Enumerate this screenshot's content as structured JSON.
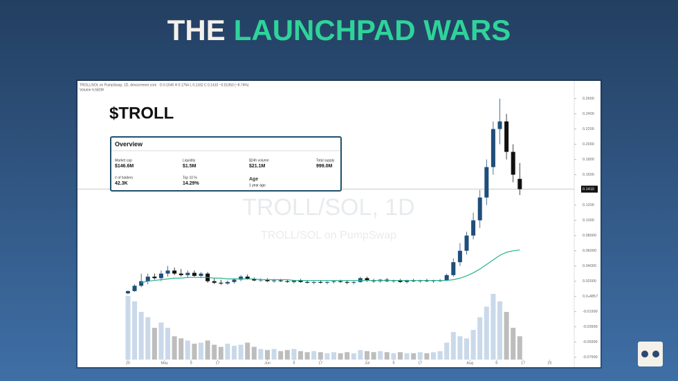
{
  "header": {
    "title": [
      "THE",
      "LAUNCHPAD WARS"
    ]
  },
  "chart_data": {
    "type": "candlestick",
    "info": "TROLL/SOL on PumpSwap, 1D, dexscreener.com · O 0.1545 H 0.1754 L 0.1332 C 0.1410 −0.01350 (−8.74%)",
    "volume_label": "Volume 6.582M",
    "ticker": "$TROLL",
    "watermark": "TROLL/SOL, 1D",
    "watermark_sub": "TROLL/SOL on PumpSwap",
    "x": [
      0,
      2,
      4,
      6,
      8,
      10,
      12,
      14,
      16,
      18,
      20,
      22,
      24,
      26,
      28,
      30,
      32,
      34,
      36,
      38,
      40,
      42,
      44,
      46,
      48,
      50,
      52,
      54,
      56,
      58,
      60,
      62,
      64,
      66,
      68,
      70,
      72,
      74,
      76,
      78,
      80,
      82,
      84,
      86,
      88,
      90,
      92,
      94,
      96,
      98,
      100,
      102,
      104,
      106,
      108,
      110,
      112,
      114,
      116,
      118
    ],
    "open": [
      0.004,
      0.007,
      0.014,
      0.02,
      0.026,
      0.024,
      0.03,
      0.034,
      0.03,
      0.028,
      0.031,
      0.027,
      0.03,
      0.02,
      0.018,
      0.017,
      0.019,
      0.022,
      0.026,
      0.023,
      0.021,
      0.022,
      0.02,
      0.021,
      0.02,
      0.019,
      0.021,
      0.019,
      0.018,
      0.019,
      0.018,
      0.019,
      0.02,
      0.019,
      0.018,
      0.019,
      0.024,
      0.021,
      0.02,
      0.022,
      0.02,
      0.021,
      0.019,
      0.021,
      0.02,
      0.021,
      0.02,
      0.021,
      0.021,
      0.028,
      0.045,
      0.06,
      0.08,
      0.1,
      0.13,
      0.17,
      0.22,
      0.23,
      0.19,
      0.1545
    ],
    "high": [
      0.008,
      0.016,
      0.03,
      0.03,
      0.03,
      0.034,
      0.04,
      0.038,
      0.036,
      0.034,
      0.034,
      0.032,
      0.032,
      0.024,
      0.022,
      0.021,
      0.024,
      0.028,
      0.029,
      0.025,
      0.024,
      0.024,
      0.023,
      0.023,
      0.022,
      0.022,
      0.023,
      0.021,
      0.02,
      0.021,
      0.02,
      0.021,
      0.022,
      0.021,
      0.02,
      0.026,
      0.026,
      0.023,
      0.023,
      0.024,
      0.022,
      0.023,
      0.022,
      0.023,
      0.022,
      0.023,
      0.022,
      0.023,
      0.03,
      0.05,
      0.07,
      0.085,
      0.11,
      0.14,
      0.18,
      0.23,
      0.26,
      0.24,
      0.2,
      0.1754
    ],
    "low": [
      0.003,
      0.006,
      0.012,
      0.016,
      0.022,
      0.02,
      0.026,
      0.028,
      0.026,
      0.024,
      0.026,
      0.024,
      0.018,
      0.016,
      0.015,
      0.015,
      0.017,
      0.02,
      0.022,
      0.02,
      0.019,
      0.019,
      0.018,
      0.019,
      0.018,
      0.017,
      0.018,
      0.017,
      0.016,
      0.017,
      0.016,
      0.017,
      0.018,
      0.016,
      0.016,
      0.018,
      0.019,
      0.018,
      0.018,
      0.019,
      0.018,
      0.018,
      0.017,
      0.019,
      0.018,
      0.019,
      0.018,
      0.019,
      0.02,
      0.026,
      0.04,
      0.055,
      0.075,
      0.09,
      0.12,
      0.16,
      0.2,
      0.18,
      0.15,
      0.1332
    ],
    "close": [
      0.007,
      0.014,
      0.02,
      0.026,
      0.024,
      0.03,
      0.034,
      0.03,
      0.028,
      0.031,
      0.027,
      0.03,
      0.02,
      0.018,
      0.017,
      0.019,
      0.022,
      0.026,
      0.023,
      0.021,
      0.022,
      0.02,
      0.021,
      0.02,
      0.019,
      0.021,
      0.019,
      0.018,
      0.019,
      0.018,
      0.019,
      0.02,
      0.019,
      0.018,
      0.019,
      0.024,
      0.021,
      0.02,
      0.022,
      0.02,
      0.021,
      0.019,
      0.021,
      0.02,
      0.021,
      0.02,
      0.021,
      0.021,
      0.028,
      0.045,
      0.06,
      0.08,
      0.1,
      0.13,
      0.17,
      0.22,
      0.23,
      0.19,
      0.16,
      0.141
    ],
    "volume": [
      60,
      55,
      45,
      40,
      30,
      35,
      30,
      22,
      20,
      18,
      15,
      16,
      18,
      14,
      12,
      15,
      13,
      14,
      16,
      12,
      10,
      9,
      10,
      8,
      9,
      10,
      8,
      7,
      8,
      7,
      6,
      7,
      6,
      7,
      6,
      9,
      8,
      7,
      8,
      7,
      6,
      7,
      6,
      6,
      7,
      6,
      7,
      8,
      16,
      26,
      22,
      20,
      28,
      40,
      50,
      62,
      55,
      45,
      30,
      22
    ],
    "ma": [
      null,
      null,
      0.018,
      0.02,
      0.021,
      0.022,
      0.023,
      0.024,
      0.024,
      0.025,
      0.025,
      0.025,
      0.025,
      0.024,
      0.024,
      0.023,
      0.023,
      0.023,
      0.023,
      0.023,
      0.022,
      0.022,
      0.022,
      0.022,
      0.022,
      0.021,
      0.021,
      0.021,
      0.021,
      0.021,
      0.021,
      0.021,
      0.021,
      0.021,
      0.021,
      0.021,
      0.021,
      0.021,
      0.021,
      0.021,
      0.021,
      0.021,
      0.021,
      0.021,
      0.021,
      0.021,
      0.021,
      0.021,
      0.021,
      0.022,
      0.024,
      0.027,
      0.031,
      0.036,
      0.042,
      0.048,
      0.054,
      0.058,
      0.06,
      0.061
    ],
    "up_color": "#1f4e79",
    "down_color": "#111111",
    "ma_color": "#26b28e",
    "volume_up_color": "#c9d9ea",
    "volume_down_color": "#bdbdbd",
    "last_price": {
      "value": 0.141,
      "label": "0.1410"
    },
    "xlim": [
      -15.2,
      134.4
    ],
    "ylim": [
      -0.083,
      0.276
    ],
    "xticks": [
      {
        "value": 0,
        "label": "20"
      },
      {
        "value": 11,
        "label": "May"
      },
      {
        "value": 19,
        "label": "9"
      },
      {
        "value": 27,
        "label": "17"
      },
      {
        "value": 42,
        "label": "Jun"
      },
      {
        "value": 50,
        "label": "9"
      },
      {
        "value": 58,
        "label": "17"
      },
      {
        "value": 72,
        "label": "Jul"
      },
      {
        "value": 80,
        "label": "9"
      },
      {
        "value": 88,
        "label": "17"
      },
      {
        "value": 103,
        "label": "Aug"
      },
      {
        "value": 111,
        "label": "9"
      },
      {
        "value": 119,
        "label": "17"
      },
      {
        "value": 127,
        "label": "25"
      }
    ],
    "yticks": [
      {
        "value": 0.26,
        "label": "0.2600"
      },
      {
        "value": 0.24,
        "label": "0.2400"
      },
      {
        "value": 0.22,
        "label": "0.2200"
      },
      {
        "value": 0.2,
        "label": "0.2000"
      },
      {
        "value": 0.18,
        "label": "0.1800"
      },
      {
        "value": 0.16,
        "label": "0.1600"
      },
      {
        "value": 0.12,
        "label": "0.1200"
      },
      {
        "value": 0.1,
        "label": "0.1000"
      },
      {
        "value": 0.08,
        "label": "0.08000"
      },
      {
        "value": 0.06,
        "label": "0.06000"
      },
      {
        "value": 0.04,
        "label": "0.04000"
      },
      {
        "value": 0.02,
        "label": "0.02000"
      },
      {
        "value": 4.857e-05,
        "label": "0.0₄4857"
      },
      -0.01999,
      -0.03999,
      -0.05999,
      -0.07999
    ]
  },
  "overview": {
    "title": "Overview",
    "items": [
      {
        "label": "Market cap",
        "value": "$146.6M"
      },
      {
        "label": "Liquidity",
        "value": "$1.5M"
      },
      {
        "label": "$24h volume",
        "value": "$21.1M"
      },
      {
        "label": "Total supply",
        "value": "999.0M"
      },
      {
        "label": "# of holders",
        "value": "42.3K"
      },
      {
        "label": "Top 10 %",
        "value": "14.29%"
      },
      {
        "label": "Age",
        "value": "1 year ago"
      }
    ]
  }
}
